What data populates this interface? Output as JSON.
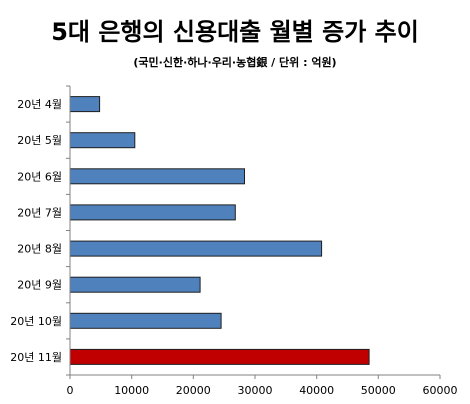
{
  "chart_data": {
    "type": "bar",
    "orientation": "horizontal",
    "title": "5대 은행의 신용대출 월별 증가 추이",
    "subtitle": "(국민·신한·하나·우리·농협銀 / 단위 : 억원)",
    "categories": [
      "20년 4월",
      "20년 5월",
      "20년 6월",
      "20년 7월",
      "20년 8월",
      "20년 9월",
      "20년 10월",
      "20년 11월"
    ],
    "values": [
      4800,
      10500,
      28300,
      26800,
      40800,
      21100,
      24500,
      48500
    ],
    "colors": [
      "#4f81bd",
      "#4f81bd",
      "#4f81bd",
      "#4f81bd",
      "#4f81bd",
      "#4f81bd",
      "#4f81bd",
      "#c00000"
    ],
    "xlim": [
      0,
      60000
    ],
    "xticks": [
      "0",
      "10000",
      "20000",
      "30000",
      "40000",
      "50000",
      "60000"
    ],
    "xlabel": "",
    "ylabel": "",
    "grid": false,
    "legend": "none"
  }
}
